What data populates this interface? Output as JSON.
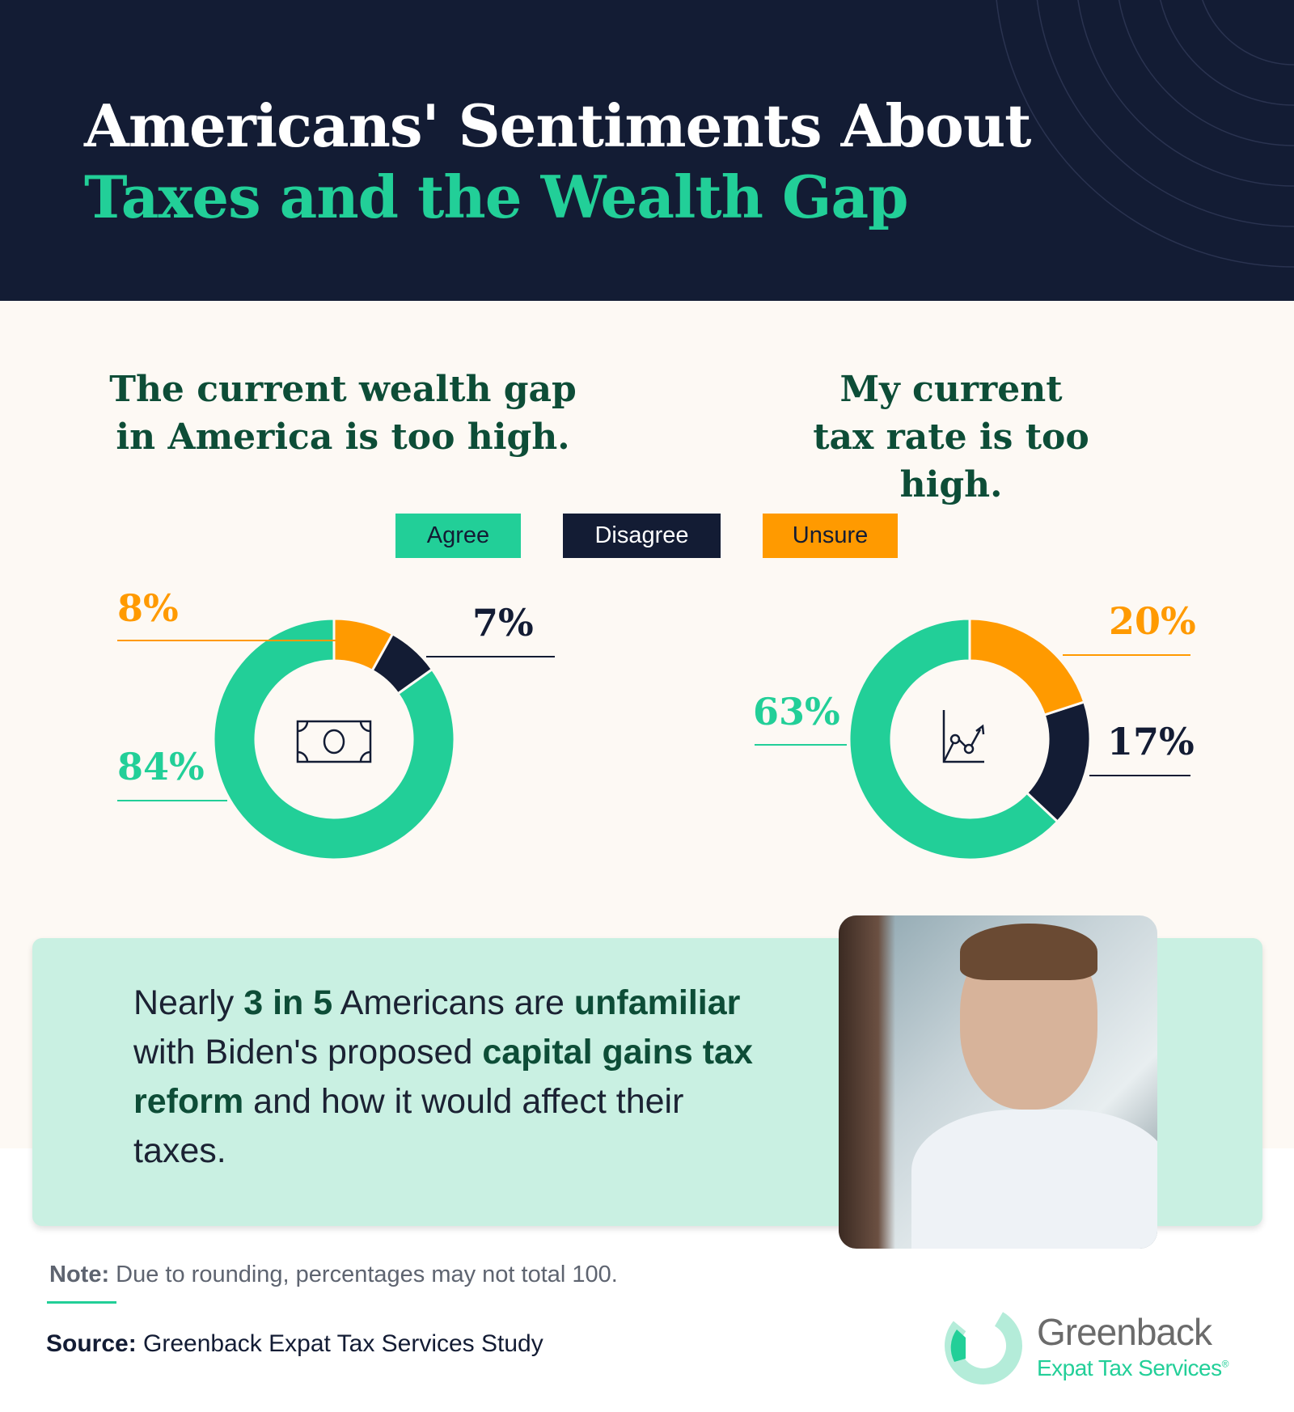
{
  "title": {
    "line1": "Americans' Sentiments About",
    "line2": "Taxes and the Wealth Gap"
  },
  "legend": [
    {
      "label": "Agree",
      "color": "#22cf98"
    },
    {
      "label": "Disagree",
      "color": "#131c34"
    },
    {
      "label": "Unsure",
      "color": "#ff9a00"
    }
  ],
  "chart_data": [
    {
      "type": "pie",
      "title": "The current wealth gap in America is too high.",
      "categories": [
        "Unsure",
        "Disagree",
        "Agree"
      ],
      "values": [
        8,
        7,
        84
      ],
      "labels": [
        "8%",
        "7%",
        "84%"
      ],
      "center_icon": "money-bill-icon"
    },
    {
      "type": "pie",
      "title": "My current tax rate is too high.",
      "categories": [
        "Unsure",
        "Disagree",
        "Agree"
      ],
      "values": [
        20,
        17,
        63
      ],
      "labels": [
        "20%",
        "17%",
        "63%"
      ],
      "center_icon": "line-chart-up-icon"
    }
  ],
  "callout": {
    "p1": "Nearly ",
    "b1": "3 in 5",
    "p2": " Americans are ",
    "b2": "unfamiliar",
    "p3": " with Biden's proposed ",
    "b3": "capital gains tax reform",
    "p4": " and how it would affect their taxes."
  },
  "note": {
    "label": "Note:",
    "text": " Due to rounding, percentages may not total 100."
  },
  "source": {
    "label": "Source:",
    "text": " Greenback Expat Tax Services Study"
  },
  "logo": {
    "name": "Greenback",
    "sub": "Expat Tax Services",
    "mark": "®"
  }
}
